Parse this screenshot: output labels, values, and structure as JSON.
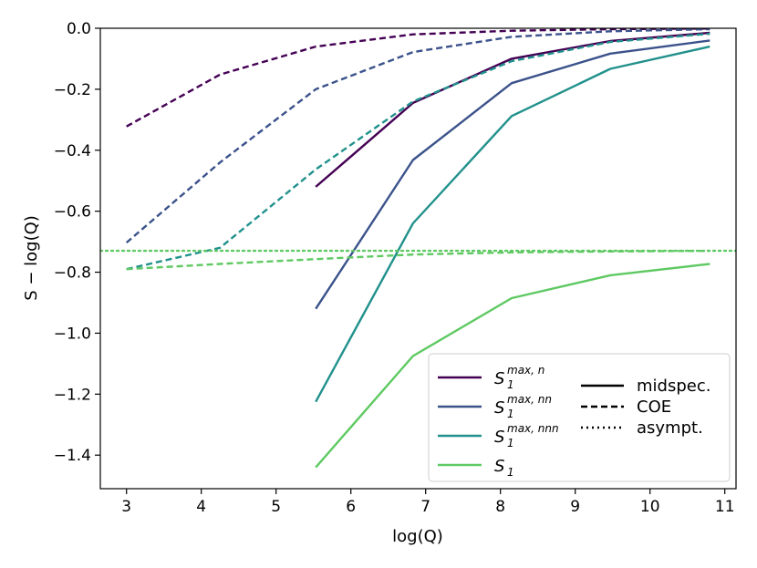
{
  "chart_data": {
    "type": "line",
    "title": "",
    "xlabel": "log(Q)",
    "ylabel": "S − log(Q)",
    "xlim": [
      2.65,
      11.15
    ],
    "ylim": [
      -1.51,
      0.0
    ],
    "xticks": [
      3,
      4,
      5,
      6,
      7,
      8,
      9,
      10,
      11
    ],
    "yticks": [
      0.0,
      -0.2,
      -0.4,
      -0.6,
      -0.8,
      -1.0,
      -1.2,
      -1.4
    ],
    "xtick_labels": [
      "3",
      "4",
      "5",
      "6",
      "7",
      "8",
      "9",
      "10",
      "11"
    ],
    "ytick_labels": [
      "0.0",
      "−0.2",
      "−0.4",
      "−0.6",
      "−0.8",
      "−1.0",
      "−1.2",
      "−1.4"
    ],
    "grid": false,
    "legend_position": "bottom-right",
    "series": [
      {
        "name": "S1 max,n midspec.",
        "key": "s1max_n",
        "style": "solid",
        "color": "#440154",
        "x": [
          5.53,
          6.83,
          8.15,
          9.47,
          10.8
        ],
        "y": [
          -0.52,
          -0.245,
          -0.1,
          -0.042,
          -0.015
        ]
      },
      {
        "name": "S1 max,nn midspec.",
        "key": "s1max_nn",
        "style": "solid",
        "color": "#3b528b",
        "x": [
          5.53,
          6.83,
          8.15,
          9.47,
          10.8
        ],
        "y": [
          -0.92,
          -0.432,
          -0.18,
          -0.083,
          -0.04
        ]
      },
      {
        "name": "S1 max,nnn midspec.",
        "key": "s1max_nnn",
        "style": "solid",
        "color": "#21918c",
        "x": [
          5.53,
          6.83,
          8.15,
          9.47,
          10.8
        ],
        "y": [
          -1.225,
          -0.64,
          -0.288,
          -0.133,
          -0.06
        ]
      },
      {
        "name": "S1 midspec.",
        "key": "s1",
        "style": "solid",
        "color": "#5ec962",
        "x": [
          5.53,
          6.83,
          8.15,
          9.47,
          10.8
        ],
        "y": [
          -1.44,
          -1.075,
          -0.885,
          -0.81,
          -0.773
        ]
      },
      {
        "name": "S1 max,n COE",
        "key": "s1max_n",
        "style": "dashed",
        "color": "#440154",
        "x": [
          3.0,
          4.25,
          5.53,
          6.83,
          8.15,
          9.47,
          10.8
        ],
        "y": [
          -0.322,
          -0.152,
          -0.06,
          -0.02,
          -0.008,
          -0.003,
          -0.001
        ]
      },
      {
        "name": "S1 max,nn COE",
        "key": "s1max_nn",
        "style": "dashed",
        "color": "#3b528b",
        "x": [
          3.0,
          4.25,
          5.53,
          6.83,
          8.15,
          9.47,
          10.8
        ],
        "y": [
          -0.703,
          -0.44,
          -0.2,
          -0.078,
          -0.028,
          -0.01,
          -0.003
        ]
      },
      {
        "name": "S1 max,nnn COE",
        "key": "s1max_nnn",
        "style": "dashed",
        "color": "#21918c",
        "x": [
          3.0,
          4.25,
          5.53,
          6.83,
          8.15,
          9.47,
          10.8
        ],
        "y": [
          -0.79,
          -0.72,
          -0.463,
          -0.24,
          -0.108,
          -0.045,
          -0.018
        ]
      },
      {
        "name": "S1 COE",
        "key": "s1",
        "style": "dashed",
        "color": "#5ec962",
        "x": [
          3.0,
          4.25,
          5.53,
          6.83,
          8.15,
          9.47,
          10.8
        ],
        "y": [
          -0.79,
          -0.773,
          -0.757,
          -0.742,
          -0.735,
          -0.732,
          -0.73
        ]
      },
      {
        "name": "S1 asympt.",
        "key": "s1",
        "style": "dotted",
        "color": "#5ec962",
        "x": [
          2.65,
          11.15
        ],
        "y": [
          -0.73,
          -0.73
        ]
      }
    ],
    "legend_colors": [
      {
        "symbol": "S",
        "subscript": "1",
        "superscript": "max, n",
        "color": "#440154"
      },
      {
        "symbol": "S",
        "subscript": "1",
        "superscript": "max, nn",
        "color": "#3b528b"
      },
      {
        "symbol": "S",
        "subscript": "1",
        "superscript": "max, nnn",
        "color": "#21918c"
      },
      {
        "symbol": "S",
        "subscript": "1",
        "superscript": "",
        "color": "#5ec962"
      }
    ],
    "legend_styles": [
      {
        "label": "midspec.",
        "style": "solid"
      },
      {
        "label": "COE",
        "style": "dashed"
      },
      {
        "label": "asympt.",
        "style": "dotted"
      }
    ]
  }
}
